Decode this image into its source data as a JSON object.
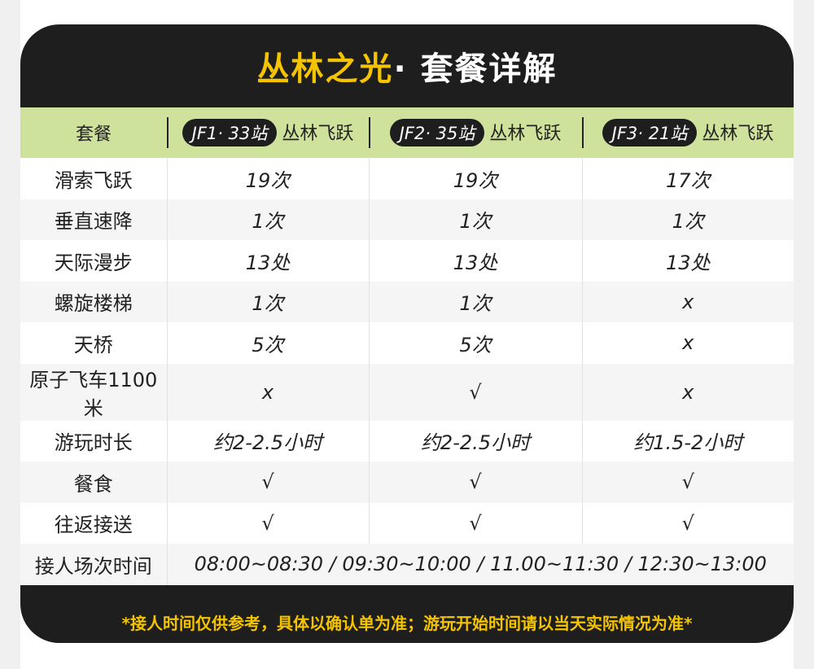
{
  "title": {
    "highlight": "丛林之光",
    "rest": "· 套餐详解"
  },
  "header": {
    "label": "套餐",
    "packages": [
      {
        "code": "JF1· 33站",
        "name": "丛林飞跃"
      },
      {
        "code": "JF2· 35站",
        "name": "丛林飞跃"
      },
      {
        "code": "JF3· 21站",
        "name": "丛林飞跃"
      }
    ]
  },
  "rows": [
    {
      "label": "滑索飞跃",
      "values": [
        "19次",
        "19次",
        "17次"
      ]
    },
    {
      "label": "垂直速降",
      "values": [
        "1次",
        "1次",
        "1次"
      ]
    },
    {
      "label": "天际漫步",
      "values": [
        "13处",
        "13处",
        "13处"
      ]
    },
    {
      "label": "螺旋楼梯",
      "values": [
        "1次",
        "1次",
        "x"
      ]
    },
    {
      "label": "天桥",
      "values": [
        "5次",
        "5次",
        "x"
      ]
    },
    {
      "label": "原子飞车1100米",
      "values": [
        "x",
        "√",
        "x"
      ]
    },
    {
      "label": "游玩时长",
      "values": [
        "约2-2.5小时",
        "约2-2.5小时",
        "约1.5-2小时"
      ]
    },
    {
      "label": "餐食",
      "values": [
        "√",
        "√",
        "√"
      ]
    },
    {
      "label": "往返接送",
      "values": [
        "√",
        "√",
        "√"
      ]
    }
  ],
  "pickup": {
    "label": "接人场次时间",
    "value": "08:00~08:30 / 09:30~10:00 / 11.00~11:30 / 12:30~13:00"
  },
  "footer": "*接人时间仅供参考，具体以确认单为准；游玩开始时间请以当天实际情况为准*",
  "colors": {
    "accent": "#f5c400",
    "header_bg": "#cfe29b",
    "card_bg": "#1e1e1e"
  }
}
